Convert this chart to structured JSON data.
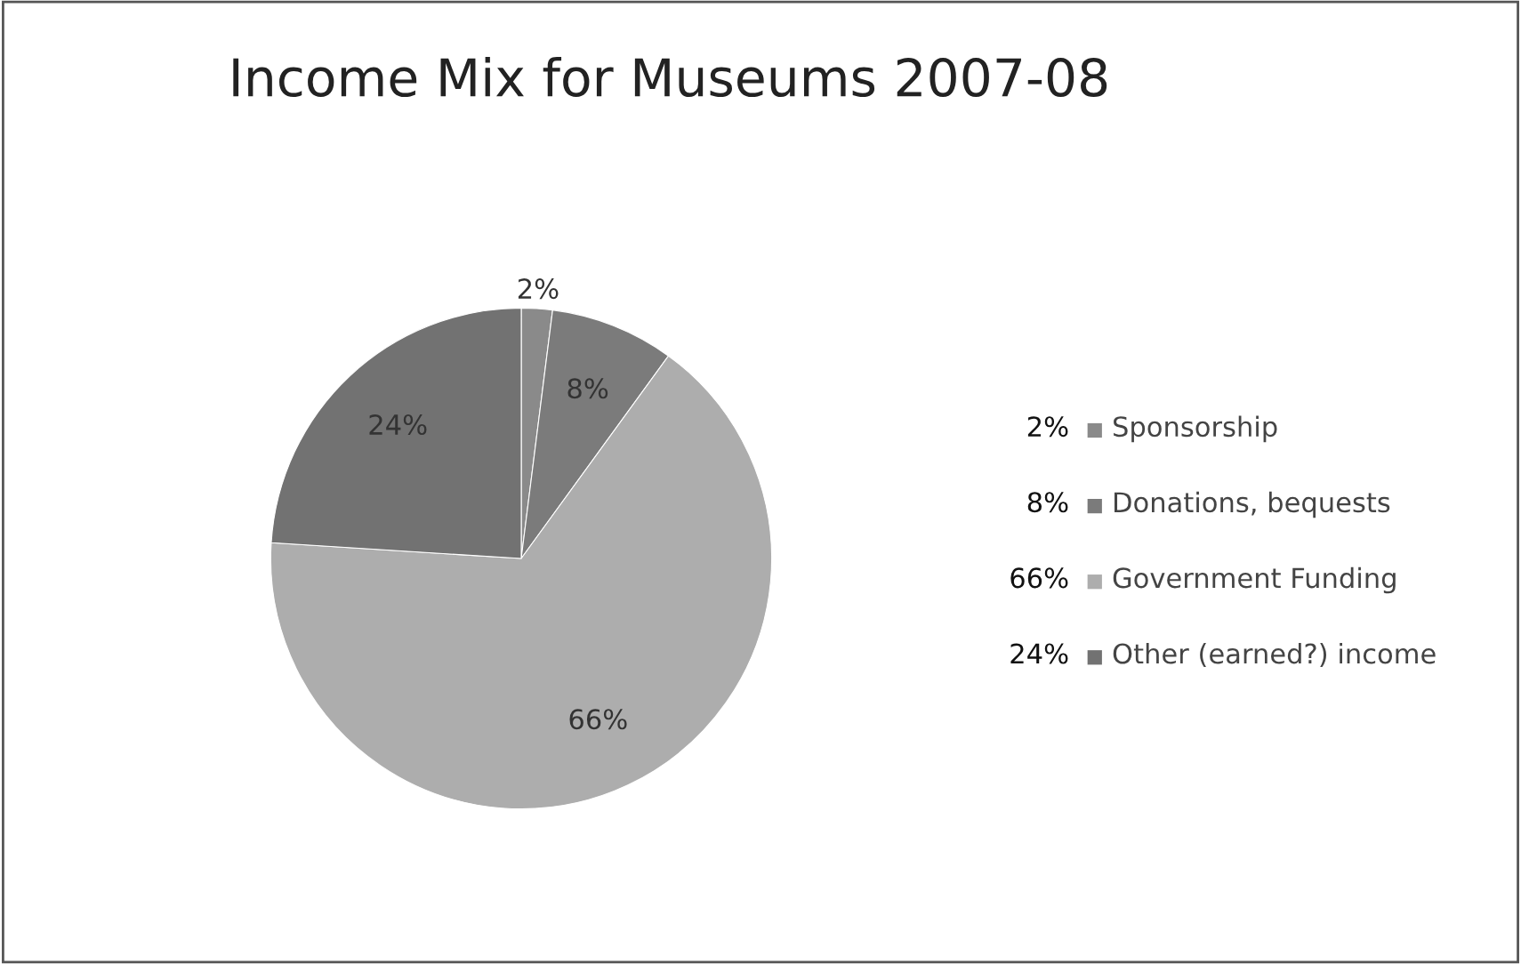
{
  "chart_data": {
    "type": "pie",
    "title": "Income Mix for Museums 2007-08",
    "categories": [
      "Sponsorship",
      "Donations, bequests",
      "Government Funding",
      "Other (earned?) income"
    ],
    "values": [
      2,
      8,
      66,
      24
    ],
    "colors": [
      "#8a8a8a",
      "#7b7b7b",
      "#adadad",
      "#727272"
    ],
    "value_labels": [
      "2%",
      "8%",
      "66%",
      "24%"
    ],
    "legend": "right"
  }
}
